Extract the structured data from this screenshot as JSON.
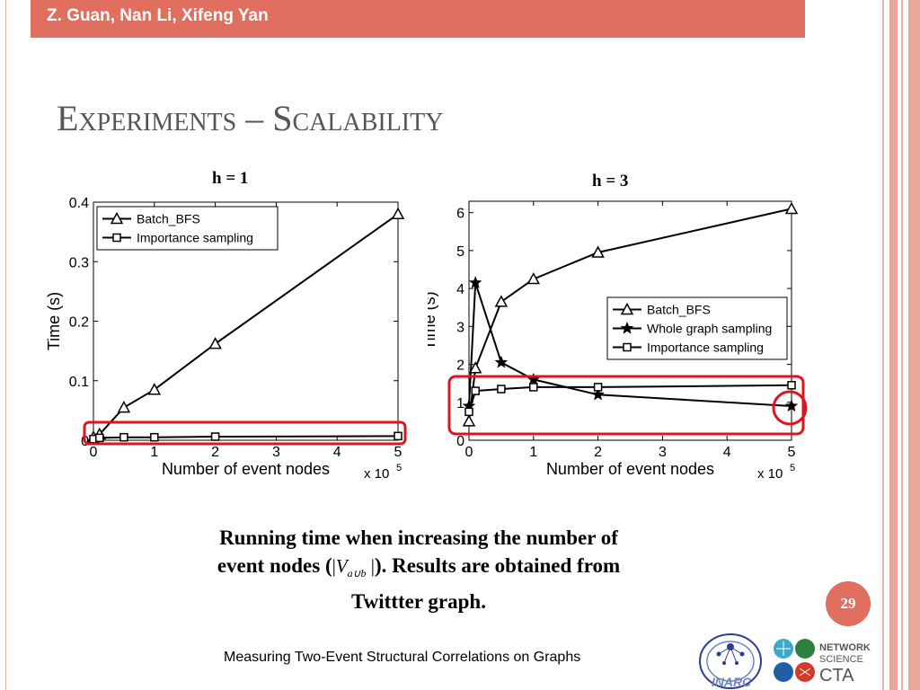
{
  "header": {
    "authors": "Z. Guan, Nan Li, Xifeng Yan"
  },
  "slide": {
    "title": "Experiments – Scalability",
    "page_number": "29",
    "footer": "Measuring Two-Event Structural Correlations on Graphs",
    "caption": {
      "line1": "Running time when increasing the number of",
      "line2_before": "event nodes (",
      "math_open": "|",
      "math_var": "V",
      "math_sub": "a∪b",
      "math_close": " |",
      "line2_after": "). Results are obtained from",
      "line3": "Twittter graph."
    }
  },
  "logos": {
    "inarc": "INARC",
    "ns_line1": "NETWORK",
    "ns_line2": "SCIENCE",
    "ns_line3": "CTA"
  },
  "colors": {
    "accent": "#e06f5f",
    "highlight": "#e0141e",
    "title_gray": "#555555"
  },
  "chart_data": [
    {
      "type": "line",
      "title": "h = 1",
      "xlabel": "Number of event nodes",
      "ylabel": "Time (s)",
      "x_multiplier": "x 10",
      "x_exponent": "5",
      "xlim": [
        0,
        5
      ],
      "ylim": [
        0,
        0.4
      ],
      "xticks": [
        0,
        1,
        2,
        3,
        4,
        5
      ],
      "yticks": [
        0,
        0.1,
        0.2,
        0.3,
        0.4
      ],
      "ytick_labels": [
        "0",
        "0.1",
        "0.2",
        "0.3",
        "0.4"
      ],
      "legend": "top-left",
      "grid": false,
      "series": [
        {
          "name": "Batch_BFS",
          "marker": "triangle",
          "x": [
            0,
            0.1,
            0.5,
            1,
            2,
            5
          ],
          "y": [
            0.005,
            0.01,
            0.055,
            0.085,
            0.162,
            0.38
          ]
        },
        {
          "name": "Importance sampling",
          "marker": "square",
          "x": [
            0,
            0.1,
            0.5,
            1,
            2,
            5
          ],
          "y": [
            0.002,
            0.004,
            0.005,
            0.005,
            0.006,
            0.007
          ]
        }
      ]
    },
    {
      "type": "line",
      "title": "h = 3",
      "xlabel": "Number of event nodes",
      "ylabel": "Time (s)",
      "x_multiplier": "x 10",
      "x_exponent": "5",
      "xlim": [
        0,
        5
      ],
      "ylim": [
        0,
        6.3
      ],
      "xticks": [
        0,
        1,
        2,
        3,
        4,
        5
      ],
      "yticks": [
        0,
        1,
        2,
        3,
        4,
        5,
        6
      ],
      "ytick_labels": [
        "0",
        "1",
        "2",
        "3",
        "4",
        "5",
        "6"
      ],
      "legend": "right",
      "grid": false,
      "series": [
        {
          "name": "Batch_BFS",
          "marker": "triangle",
          "x": [
            0,
            0.1,
            0.5,
            1,
            2,
            5
          ],
          "y": [
            0.5,
            1.9,
            3.65,
            4.25,
            4.95,
            6.1
          ]
        },
        {
          "name": "Whole graph sampling",
          "marker": "star",
          "x": [
            0,
            0.1,
            0.5,
            1,
            2,
            5
          ],
          "y": [
            0.9,
            4.15,
            2.05,
            1.6,
            1.2,
            0.9
          ]
        },
        {
          "name": "Importance sampling",
          "marker": "square",
          "x": [
            0,
            0.1,
            0.5,
            1,
            2,
            5
          ],
          "y": [
            0.75,
            1.3,
            1.35,
            1.4,
            1.4,
            1.45
          ]
        }
      ]
    }
  ]
}
